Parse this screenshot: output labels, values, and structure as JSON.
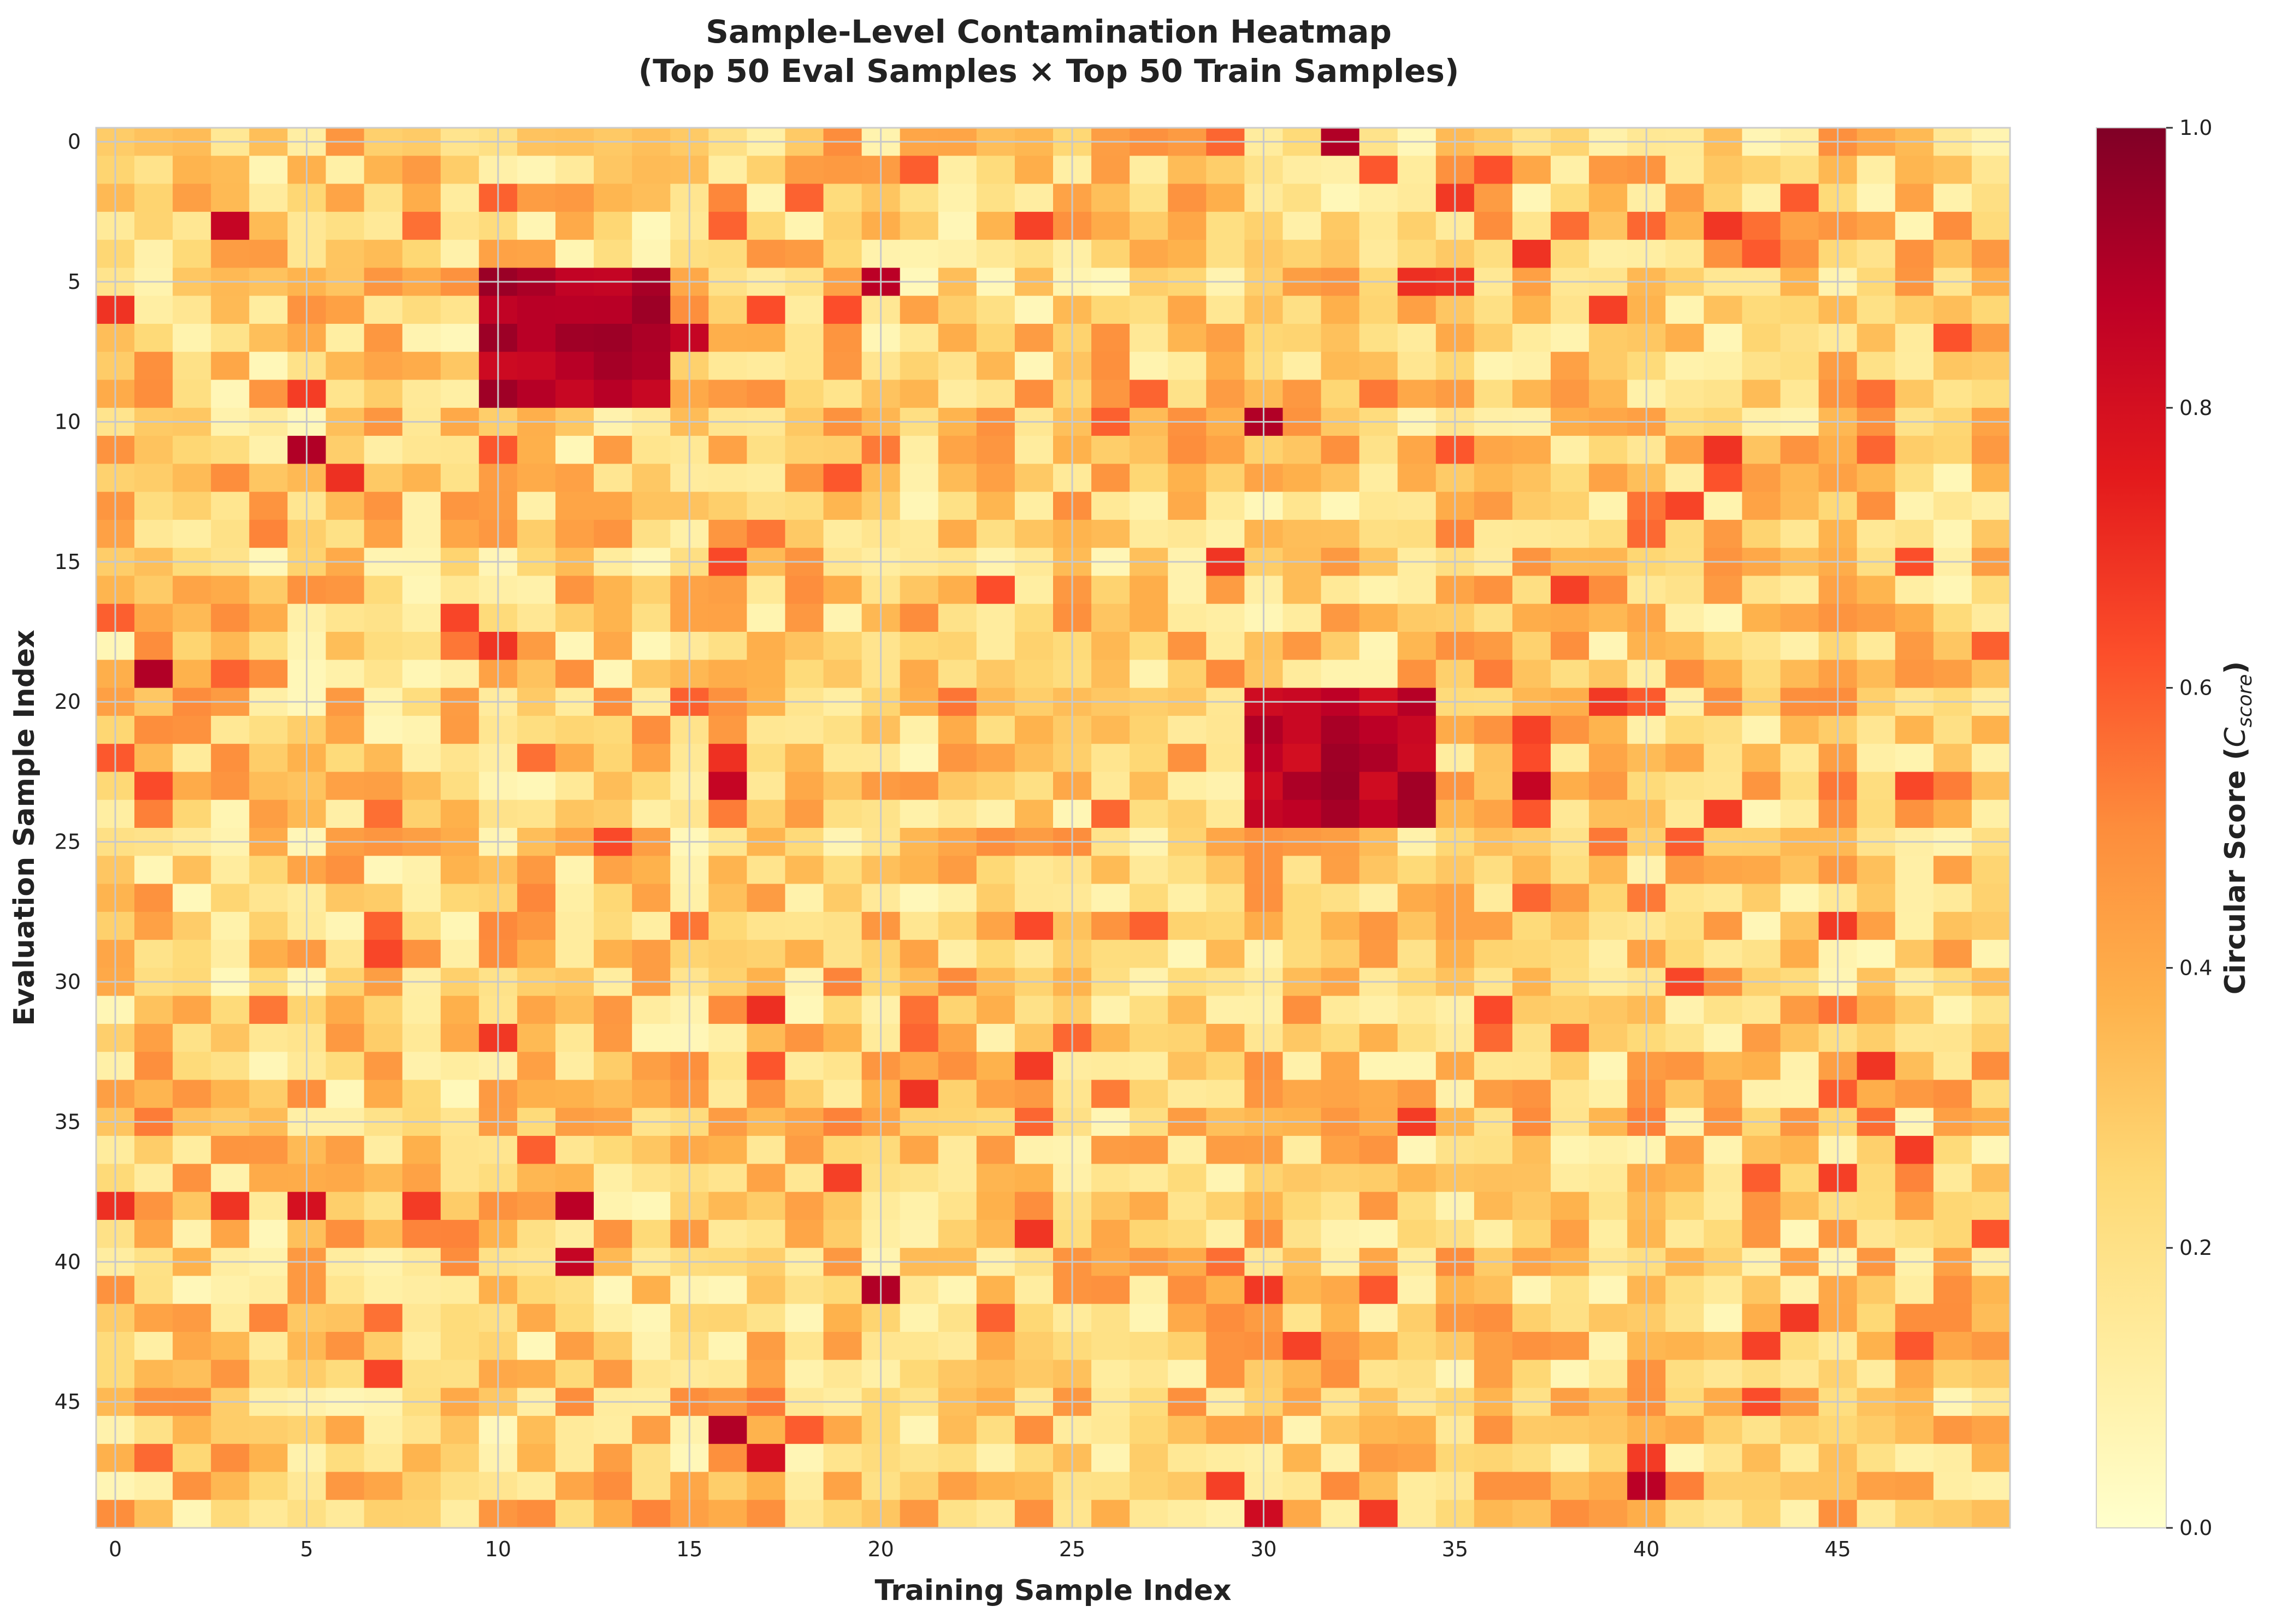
{
  "chart_data": {
    "type": "heatmap",
    "title": "Sample-Level Contamination Heatmap",
    "subtitle": "(Top 50 Eval Samples × Top 50 Train Samples)",
    "xlabel": "Training Sample Index",
    "ylabel": "Evaluation Sample Index",
    "rows": 50,
    "cols": 50,
    "x_ticks": [
      "0",
      "5",
      "10",
      "15",
      "20",
      "25",
      "30",
      "35",
      "40",
      "45"
    ],
    "y_ticks": [
      "0",
      "5",
      "10",
      "15",
      "20",
      "25",
      "30",
      "35",
      "40",
      "45"
    ],
    "colorbar": {
      "label_prefix": "Circular Score (",
      "label_symbol": "C",
      "label_subscript": "score",
      "label_suffix": ")",
      "range": [
        0.0,
        1.0
      ],
      "ticks": [
        "0.0",
        "0.2",
        "0.4",
        "0.6",
        "0.8",
        "1.0"
      ]
    },
    "colormap": "YlOrRd",
    "colormap_stops": [
      "#ffffcc",
      "#ffeda0",
      "#fed976",
      "#feb24c",
      "#fd8d3c",
      "#fc4e2a",
      "#e31a1c",
      "#bd0026",
      "#800026"
    ],
    "grid": true,
    "value_range": [
      0.0,
      1.0
    ],
    "value_distribution": "mostly 0.1–0.5 background noise",
    "high_blocks": [
      {
        "rows": [
          5,
          9
        ],
        "cols": [
          10,
          14
        ],
        "value_range": [
          0.8,
          0.95
        ]
      },
      {
        "rows": [
          20,
          24
        ],
        "cols": [
          30,
          34
        ],
        "value_range": [
          0.8,
          0.95
        ]
      }
    ],
    "hotspots": [
      {
        "row": 0,
        "col": 32,
        "value": 0.9
      },
      {
        "row": 3,
        "col": 3,
        "value": 0.85
      },
      {
        "row": 5,
        "col": 20,
        "value": 0.88
      },
      {
        "row": 7,
        "col": 15,
        "value": 0.85
      },
      {
        "row": 10,
        "col": 30,
        "value": 0.9
      },
      {
        "row": 11,
        "col": 5,
        "value": 0.9
      },
      {
        "row": 19,
        "col": 1,
        "value": 0.9
      },
      {
        "row": 23,
        "col": 16,
        "value": 0.85
      },
      {
        "row": 23,
        "col": 37,
        "value": 0.85
      },
      {
        "row": 38,
        "col": 12,
        "value": 0.88
      },
      {
        "row": 38,
        "col": 5,
        "value": 0.8
      },
      {
        "row": 40,
        "col": 12,
        "value": 0.85
      },
      {
        "row": 41,
        "col": 20,
        "value": 0.9
      },
      {
        "row": 46,
        "col": 16,
        "value": 0.9
      },
      {
        "row": 47,
        "col": 17,
        "value": 0.8
      },
      {
        "row": 48,
        "col": 40,
        "value": 0.88
      },
      {
        "row": 49,
        "col": 30,
        "value": 0.82
      }
    ]
  }
}
